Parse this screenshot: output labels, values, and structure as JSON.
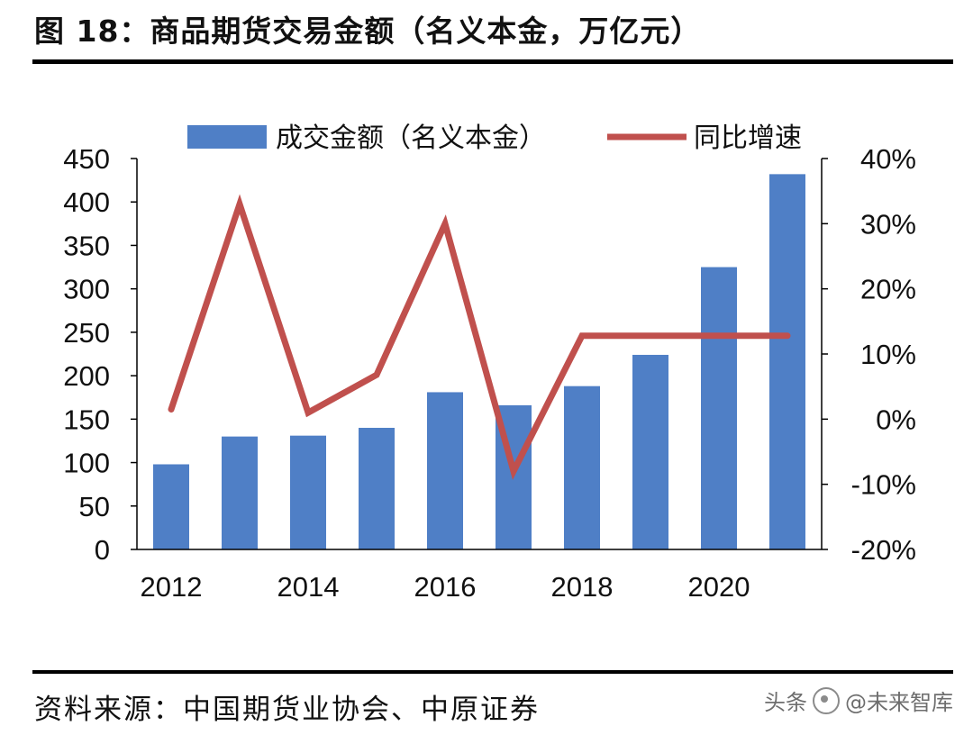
{
  "header": {
    "title": "图 18：商品期货交易金额（名义本金，万亿元）"
  },
  "footer": {
    "source": "资料来源：中国期货业协会、中原证券",
    "watermark_prefix": "头条",
    "watermark": "@未来智库"
  },
  "colors": {
    "bar": "#4f7fc6",
    "line": "#c0504d",
    "axis": "#000000"
  },
  "chart_data": {
    "type": "bar",
    "legend": {
      "placement": "top",
      "bar_label": "成交金额（名义本金）",
      "line_label": "同比增速"
    },
    "categories": [
      "2012",
      "2013",
      "2014",
      "2015",
      "2016",
      "2017",
      "2018",
      "2019",
      "2020",
      "2021"
    ],
    "x_tick_labels": [
      "2012",
      "",
      "2014",
      "",
      "2016",
      "",
      "2018",
      "",
      "2020",
      ""
    ],
    "series": [
      {
        "name": "成交金额（名义本金）",
        "type": "bar",
        "axis": "left",
        "values": [
          98,
          130,
          131,
          140,
          181,
          166,
          188,
          224,
          325,
          432
        ]
      },
      {
        "name": "同比增速",
        "type": "line",
        "axis": "right",
        "values": [
          1.5,
          33.0,
          1.0,
          6.8,
          30.0,
          -8.0,
          12.8,
          12.8,
          12.8,
          12.8
        ]
      }
    ],
    "y_left": {
      "min": 0,
      "max": 450,
      "ticks": [
        "0",
        "50",
        "100",
        "150",
        "200",
        "250",
        "300",
        "350",
        "400",
        "450"
      ]
    },
    "y_right": {
      "min": -20,
      "max": 40,
      "ticks": [
        "-20%",
        "-10%",
        "0%",
        "10%",
        "20%",
        "30%",
        "40%"
      ]
    },
    "grid": false
  }
}
